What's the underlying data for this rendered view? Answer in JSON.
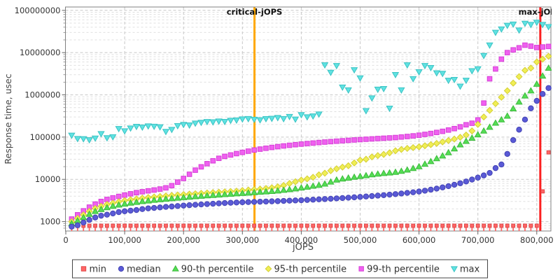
{
  "chart_data": {
    "type": "scatter",
    "title": "",
    "xlabel": "jOPS",
    "ylabel": "Response time, usec",
    "grid": true,
    "legend_position": "bottom",
    "colors": {
      "min": "#ff6666",
      "median": "#5a5ad6",
      "p90": "#55dd55",
      "p95": "#f0ee55",
      "p99": "#f060f0",
      "max": "#60e2e2",
      "critical_line": "#ffa800",
      "max_line": "#fb2020",
      "grid_major": "#c8c8c8",
      "grid_minor": "#dfdfdf",
      "frame": "#808080",
      "text": "#333333"
    },
    "x_axis": {
      "min": 0,
      "max": 824000,
      "tick_step": 100000,
      "tick_values": [
        0,
        100000,
        200000,
        300000,
        400000,
        500000,
        600000,
        700000,
        800000
      ],
      "tick_labels": [
        "0",
        "100,000",
        "200,000",
        "300,000",
        "400,000",
        "500,000",
        "600,000",
        "700,000",
        "800,000"
      ]
    },
    "y_axis": {
      "scale": "log",
      "min": 600,
      "max": 120000000,
      "tick_values": [
        1000,
        10000,
        100000,
        1000000,
        10000000,
        100000000
      ],
      "tick_labels": [
        "1000",
        "10000",
        "100000",
        "1000000",
        "10000000",
        "100000000"
      ]
    },
    "annotations": [
      {
        "label": "critical-jOPS",
        "x": 320500,
        "color": "#ffa800"
      },
      {
        "label": "max-jOPS",
        "x": 806000,
        "color": "#fb2020"
      }
    ],
    "x_jops": [
      10000,
      20000,
      30000,
      40000,
      50000,
      60000,
      70000,
      80000,
      90000,
      100000,
      110000,
      120000,
      130000,
      140000,
      150000,
      160000,
      170000,
      180000,
      190000,
      200000,
      210000,
      220000,
      230000,
      240000,
      250000,
      260000,
      270000,
      280000,
      290000,
      300000,
      310000,
      320000,
      330000,
      340000,
      350000,
      360000,
      370000,
      380000,
      390000,
      400000,
      410000,
      420000,
      430000,
      440000,
      450000,
      460000,
      470000,
      480000,
      490000,
      500000,
      510000,
      520000,
      530000,
      540000,
      550000,
      560000,
      570000,
      580000,
      590000,
      600000,
      610000,
      620000,
      630000,
      640000,
      650000,
      660000,
      670000,
      680000,
      690000,
      700000,
      710000,
      720000,
      730000,
      740000,
      750000,
      760000,
      770000,
      780000,
      790000,
      800000,
      810000,
      820000
    ],
    "series": [
      {
        "name": "min",
        "marker": "square",
        "color": "#ff6666",
        "stroke": "#e04848",
        "stem_to_bottom": true,
        "values": [
          800,
          800,
          800,
          800,
          800,
          800,
          800,
          800,
          800,
          800,
          800,
          800,
          800,
          800,
          800,
          800,
          800,
          800,
          800,
          800,
          800,
          800,
          800,
          800,
          800,
          800,
          800,
          800,
          800,
          800,
          800,
          800,
          800,
          800,
          800,
          800,
          800,
          800,
          800,
          800,
          800,
          800,
          800,
          800,
          800,
          800,
          800,
          800,
          800,
          800,
          800,
          800,
          800,
          800,
          800,
          800,
          800,
          800,
          800,
          800,
          800,
          800,
          800,
          800,
          800,
          800,
          800,
          800,
          800,
          800,
          800,
          800,
          800,
          800,
          800,
          800,
          800,
          800,
          800,
          800,
          5200,
          43500
        ]
      },
      {
        "name": "max",
        "marker": "triangle-down",
        "color": "#60e2e2",
        "stroke": "#3bc4c4",
        "stem_to_bottom": false,
        "values": [
          110000,
          92000,
          91000,
          86000,
          94000,
          120000,
          96000,
          101000,
          158000,
          140000,
          163000,
          178000,
          172000,
          183000,
          179000,
          174000,
          135000,
          151000,
          185000,
          198000,
          192000,
          213000,
          222000,
          232000,
          228000,
          238000,
          233000,
          248000,
          252000,
          268000,
          272000,
          262000,
          255000,
          271000,
          276000,
          288000,
          272000,
          306000,
          265000,
          338000,
          300000,
          315000,
          350000,
          5100000,
          3400000,
          4900000,
          1520000,
          1300000,
          3900000,
          2500000,
          420000,
          840000,
          1350000,
          1400000,
          480000,
          3000000,
          1300000,
          5100000,
          2400000,
          3500000,
          4900000,
          4400000,
          3300000,
          3200000,
          2200000,
          2300000,
          1600000,
          2200000,
          3700000,
          4100000,
          8500000,
          15000000,
          30000000,
          36000000,
          44000000,
          47000000,
          34000000,
          49000000,
          46000000,
          52000000,
          46000000,
          41000000
        ]
      },
      {
        "name": "99-th percentile",
        "marker": "square",
        "color": "#f060f0",
        "stroke": "#d63fd6",
        "stem_to_bottom": false,
        "values": [
          1150,
          1450,
          1800,
          2200,
          2600,
          3000,
          3350,
          3650,
          3950,
          4250,
          4550,
          4850,
          5100,
          5350,
          5600,
          5900,
          6300,
          7100,
          8600,
          10500,
          13200,
          16500,
          19800,
          23500,
          27500,
          31500,
          35000,
          37800,
          40700,
          43500,
          46500,
          49500,
          52000,
          54500,
          57000,
          59500,
          61800,
          64000,
          66200,
          68300,
          70400,
          72400,
          74400,
          76300,
          78200,
          80100,
          82000,
          83800,
          85600,
          87300,
          89000,
          90700,
          92400,
          94100,
          95800,
          97600,
          100500,
          103500,
          107000,
          111000,
          116000,
          122000,
          129000,
          137000,
          147000,
          159000,
          175000,
          196000,
          213000,
          255000,
          640000,
          2400000,
          4100000,
          7000000,
          10000000,
          11600000,
          13000000,
          15000000,
          14200000,
          13200000,
          13600000,
          14000000
        ]
      },
      {
        "name": "95-th percentile",
        "marker": "diamond",
        "color": "#f0ee55",
        "stroke": "#d4cf35",
        "stem_to_bottom": false,
        "values": [
          1000,
          1200,
          1450,
          1750,
          2050,
          2300,
          2550,
          2750,
          2950,
          3150,
          3300,
          3450,
          3600,
          3720,
          3840,
          3950,
          4060,
          4170,
          4280,
          4380,
          4480,
          4580,
          4680,
          4780,
          4880,
          4980,
          5080,
          5180,
          5280,
          5450,
          5600,
          5750,
          5900,
          6100,
          6350,
          6700,
          7200,
          8000,
          8800,
          9600,
          10300,
          11200,
          12800,
          14000,
          16000,
          17800,
          19500,
          21000,
          24500,
          28500,
          30000,
          34000,
          36500,
          39000,
          42500,
          47500,
          51000,
          54000,
          56500,
          59000,
          62500,
          66500,
          71000,
          77000,
          83000,
          90000,
          99000,
          112000,
          140000,
          200000,
          300000,
          430000,
          620000,
          880000,
          1250000,
          1900000,
          2700000,
          3800000,
          4300000,
          6000000,
          7000000,
          8200000
        ]
      },
      {
        "name": "90-th percentile",
        "marker": "triangle-up",
        "color": "#55dd55",
        "stroke": "#3cbb3c",
        "stem_to_bottom": false,
        "values": [
          900,
          1050,
          1250,
          1500,
          1750,
          1950,
          2150,
          2320,
          2480,
          2620,
          2760,
          2880,
          3000,
          3110,
          3220,
          3320,
          3420,
          3520,
          3620,
          3720,
          3820,
          3920,
          4010,
          4110,
          4200,
          4300,
          4390,
          4490,
          4580,
          4680,
          4780,
          4890,
          5000,
          5110,
          5230,
          5360,
          5550,
          5750,
          6000,
          6300,
          6600,
          6950,
          7300,
          7800,
          8700,
          9700,
          10300,
          10800,
          11300,
          11800,
          12300,
          12900,
          13400,
          13900,
          14300,
          14800,
          15600,
          16700,
          18200,
          20000,
          23000,
          26500,
          31000,
          36000,
          43000,
          53000,
          66000,
          80000,
          95000,
          114000,
          140000,
          172000,
          215000,
          258000,
          315000,
          470000,
          680000,
          950000,
          1250000,
          1800000,
          2800000,
          4300000
        ]
      },
      {
        "name": "median",
        "marker": "circle",
        "color": "#5a5ad6",
        "stroke": "#4343b4",
        "stem_to_bottom": false,
        "values": [
          760,
          820,
          950,
          1100,
          1250,
          1380,
          1460,
          1560,
          1680,
          1760,
          1820,
          1880,
          1980,
          2060,
          2110,
          2170,
          2230,
          2280,
          2340,
          2400,
          2450,
          2500,
          2550,
          2600,
          2650,
          2700,
          2750,
          2790,
          2830,
          2870,
          2900,
          2930,
          2960,
          2990,
          3020,
          3050,
          3090,
          3130,
          3170,
          3210,
          3260,
          3310,
          3360,
          3420,
          3480,
          3540,
          3610,
          3680,
          3760,
          3840,
          3930,
          4020,
          4120,
          4230,
          4350,
          4480,
          4620,
          4780,
          4950,
          5150,
          5400,
          5700,
          6050,
          6450,
          6900,
          7450,
          8100,
          8900,
          9900,
          11000,
          12400,
          14200,
          18500,
          22500,
          40000,
          85000,
          150000,
          260000,
          480000,
          720000,
          1050000,
          1450000
        ]
      }
    ],
    "legend_order": [
      "min",
      "median",
      "90-th percentile",
      "95-th percentile",
      "99-th percentile",
      "max"
    ]
  }
}
